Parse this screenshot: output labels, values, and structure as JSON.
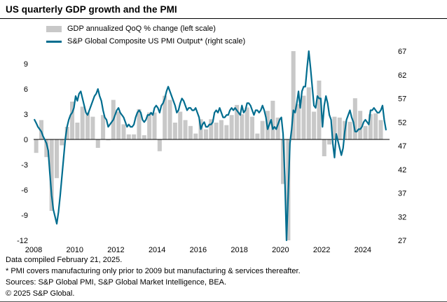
{
  "footnotes": [
    "Data compiled February 21, 2025.",
    "* PMI covers manufacturing only prior to 2009 but manufacturing & services thereafter.",
    "Sources: S&P Global PMI, S&P Global Market Intelligence, BEA.",
    "© 2025 S&P Global."
  ],
  "chart_data": {
    "type": "bar+line",
    "title": "US quarterly GDP growth and the PMI",
    "legend": [
      {
        "label": "GDP annualized QoQ % change (left scale)",
        "type": "bar",
        "color": "#c8c8c8"
      },
      {
        "label": "S&P Global Composite US PMI Output* (right scale)",
        "type": "line",
        "color": "#006d8f"
      }
    ],
    "left_axis": {
      "ticks": [
        9,
        6,
        3,
        0,
        -3,
        -6,
        -9,
        -12
      ],
      "range": [
        -12,
        10.5
      ]
    },
    "right_axis": {
      "ticks": [
        67,
        62,
        57,
        52,
        47,
        42,
        37,
        32,
        27
      ],
      "range": [
        27,
        67
      ]
    },
    "x_axis": {
      "ticks": [
        2008,
        2010,
        2012,
        2014,
        2016,
        2018,
        2020,
        2022,
        2024
      ],
      "range": [
        2008,
        2025.3
      ]
    },
    "grid": false,
    "legend_position": "top-left",
    "gdp_quarterly": {
      "name": "GDP annualized QoQ % change",
      "unit": "%",
      "frequency": "quarterly",
      "start_year": 2008,
      "start_period": "2008-Q1",
      "color": "#c8c8c8",
      "note": "values beyond axis range (2020 Q2/Q3) are clipped to the plot",
      "values": [
        -1.6,
        2.3,
        -2.1,
        -8.5,
        -4.6,
        -0.7,
        1.5,
        4.5,
        2.0,
        3.9,
        3.2,
        2.7,
        -1.0,
        2.9,
        -0.1,
        4.7,
        3.3,
        1.8,
        0.6,
        0.6,
        3.6,
        0.5,
        3.2,
        3.2,
        -1.4,
        5.2,
        4.7,
        2.0,
        3.3,
        2.3,
        1.6,
        0.7,
        2.4,
        1.2,
        2.4,
        2.0,
        2.3,
        1.7,
        2.9,
        4.1,
        3.0,
        3.8,
        2.7,
        0.7,
        2.2,
        3.4,
        4.6,
        2.6,
        -5.3,
        -28.1,
        34.8,
        4.2,
        5.2,
        6.2,
        3.3,
        7.0,
        -2.0,
        -0.6,
        2.7,
        2.6,
        2.2,
        2.1,
        4.9,
        3.4,
        1.6,
        3.0,
        3.1,
        2.3
      ]
    },
    "pmi_monthly": {
      "name": "S&P Global Composite US PMI Output",
      "frequency": "monthly",
      "start_year": 2008,
      "start_period": "2008-01",
      "end_period": "2025-02",
      "color": "#006d8f",
      "values": [
        52.5,
        51.8,
        51.0,
        50.5,
        50.0,
        49.0,
        48.3,
        47.5,
        46.0,
        41.0,
        36.5,
        33.5,
        32.0,
        30.5,
        33.0,
        36.5,
        40.5,
        44.5,
        48.5,
        51.0,
        52.5,
        53.5,
        54.0,
        55.0,
        57.5,
        56.5,
        58.0,
        58.5,
        57.0,
        55.5,
        54.0,
        53.5,
        54.5,
        55.5,
        56.5,
        57.5,
        58.0,
        59.0,
        57.5,
        56.5,
        54.5,
        53.0,
        52.5,
        51.0,
        51.5,
        52.0,
        52.5,
        53.5,
        54.5,
        55.0,
        54.0,
        53.5,
        53.0,
        52.0,
        51.0,
        51.5,
        51.0,
        51.0,
        51.5,
        53.0,
        54.0,
        54.5,
        54.0,
        52.5,
        52.0,
        52.5,
        53.5,
        53.5,
        54.0,
        53.5,
        55.0,
        55.5,
        55.0,
        54.0,
        55.5,
        56.0,
        57.0,
        58.5,
        59.5,
        58.5,
        57.5,
        56.5,
        55.5,
        54.0,
        54.5,
        56.0,
        57.0,
        56.5,
        55.5,
        54.5,
        55.0,
        55.0,
        54.5,
        54.5,
        55.0,
        54.0,
        53.0,
        50.5,
        51.5,
        52.0,
        51.0,
        51.0,
        51.5,
        51.5,
        52.0,
        54.0,
        54.5,
        54.0,
        55.0,
        54.0,
        53.0,
        53.0,
        53.5,
        53.5,
        54.5,
        55.0,
        54.5,
        55.0,
        54.5,
        54.0,
        53.5,
        55.5,
        54.0,
        54.5,
        56.0,
        56.0,
        55.5,
        54.5,
        53.5,
        54.5,
        54.5,
        54.0,
        54.5,
        55.5,
        54.5,
        53.0,
        50.5,
        51.5,
        52.5,
        50.5,
        51.0,
        50.5,
        51.5,
        52.5,
        53.0,
        49.5,
        40.5,
        27.0,
        37.0,
        47.5,
        50.5,
        54.5,
        54.0,
        56.0,
        58.5,
        55.0,
        58.5,
        59.5,
        59.5,
        63.5,
        68.5,
        63.5,
        59.5,
        55.5,
        55.0,
        57.5,
        57.0,
        57.0,
        51.0,
        55.5,
        57.5,
        56.0,
        53.5,
        52.5,
        47.5,
        44.5,
        49.5,
        48.0,
        46.5,
        45.0,
        46.5,
        50.0,
        52.5,
        53.5,
        54.5,
        53.0,
        52.0,
        50.0,
        50.0,
        50.5,
        50.5,
        51.0,
        52.0,
        52.5,
        52.0,
        51.5,
        54.5,
        54.5,
        55.0,
        54.5,
        54.0,
        54.0,
        54.5,
        55.5,
        52.5,
        50.4
      ]
    }
  }
}
